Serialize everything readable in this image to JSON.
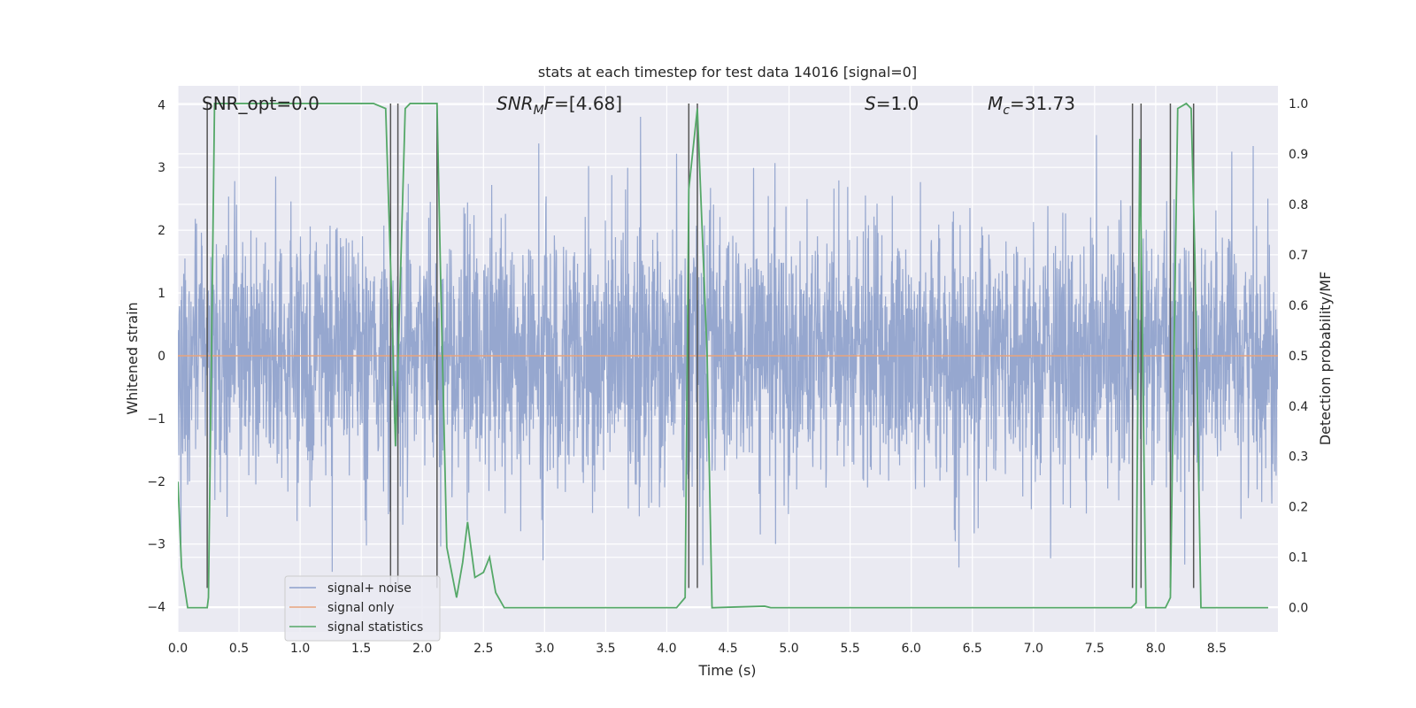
{
  "chart_data": {
    "type": "line",
    "title": "stats at each timestep for test data 14016 [signal=0]",
    "xlabel": "Time (s)",
    "ylabel": "Whitened strain",
    "ylabel_right": "Detection probability/MF",
    "xlim": [
      0.0,
      9.0
    ],
    "ylim": [
      -4.4,
      4.3
    ],
    "ylim_right": [
      -0.048,
      1.035
    ],
    "x_ticks": [
      "0.0",
      "0.5",
      "1.0",
      "1.5",
      "2.0",
      "2.5",
      "3.0",
      "3.5",
      "4.0",
      "4.5",
      "5.0",
      "5.5",
      "6.0",
      "6.5",
      "7.0",
      "7.5",
      "8.0",
      "8.5"
    ],
    "y_ticks": [
      "4",
      "3",
      "2",
      "1",
      "0",
      "−1",
      "−2",
      "−3",
      "−4"
    ],
    "y_right_ticks": [
      "1.0",
      "0.9",
      "0.8",
      "0.7",
      "0.6",
      "0.5",
      "0.4",
      "0.3",
      "0.2",
      "0.1",
      "0.0"
    ],
    "grid": true,
    "legend_position": "lower-left",
    "annotations": {
      "snr_opt": "SNR_opt=0.0",
      "snr_mf": "SNR",
      "snr_mf_sub": "M",
      "snr_mf_rest": "F=[4.68]",
      "s_label": "S",
      "s_value": "=1.0",
      "mc_label": "M",
      "mc_sub": "c",
      "mc_value": "=31.73"
    },
    "series": [
      {
        "name": "signal+ noise",
        "color": "#8da0cb",
        "style": "dense noise, approx ±1.5 body with peaks to ±3.5",
        "noise_std": 1.0,
        "sample_rate": 400
      },
      {
        "name": "signal only",
        "color": "#e8a47c",
        "values_constant": 0.0
      },
      {
        "name": "signal statistics",
        "color": "#55a868",
        "x": [
          0.0,
          0.03,
          0.08,
          0.24,
          0.25,
          0.3,
          1.6,
          1.7,
          1.75,
          1.78,
          1.8,
          1.86,
          1.9,
          2.12,
          2.15,
          2.2,
          2.28,
          2.33,
          2.37,
          2.43,
          2.5,
          2.55,
          2.6,
          2.67,
          4.08,
          4.15,
          4.18,
          4.25,
          4.33,
          4.37,
          4.8,
          4.85,
          7.8,
          7.84,
          7.87,
          7.92,
          8.08,
          8.12,
          8.18,
          8.25,
          8.29,
          8.32,
          8.37,
          8.92
        ],
        "y": [
          0.25,
          0.08,
          0.0,
          0.0,
          0.02,
          1.0,
          1.0,
          0.99,
          0.6,
          0.32,
          0.48,
          0.99,
          1.0,
          1.0,
          0.65,
          0.12,
          0.02,
          0.09,
          0.17,
          0.06,
          0.07,
          0.1,
          0.03,
          0.0,
          0.0,
          0.02,
          0.83,
          0.99,
          0.5,
          0.0,
          0.003,
          0.0,
          0.0,
          0.01,
          0.93,
          0.0,
          0.0,
          0.02,
          0.99,
          1.0,
          0.99,
          0.7,
          0.0,
          0.0
        ]
      }
    ],
    "vlines_x": [
      0.24,
      1.74,
      1.8,
      2.12,
      4.18,
      4.25,
      7.81,
      7.88,
      8.12,
      8.31
    ]
  }
}
